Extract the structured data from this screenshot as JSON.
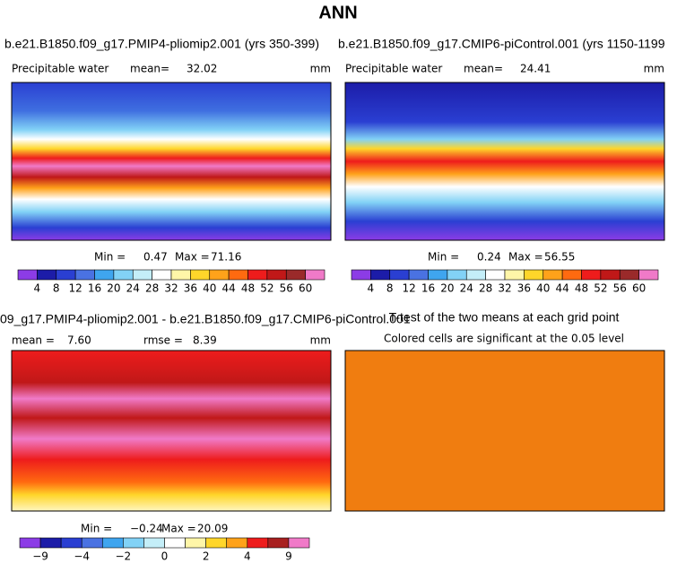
{
  "title": "ANN",
  "panels": [
    {
      "title": "b.e21.B1850.f09_g17.PMIP4-pliomip2.001 (yrs 350-399)",
      "variable": "Precipitable water",
      "stat_label": "mean=",
      "stat": "32.02",
      "units": "mm",
      "min_label": "Min =",
      "min": "0.47",
      "max_label": "Max =",
      "max": "71.16",
      "colorbar": {
        "colors": [
          "#8c3ce6",
          "#1c1ca8",
          "#2a3fd2",
          "#4a72e2",
          "#3fa5ef",
          "#82d2f6",
          "#c4eef8",
          "#ffffff",
          "#fff6a8",
          "#ffd62a",
          "#ffa21a",
          "#ff6a10",
          "#ee1c1c",
          "#c01818",
          "#9a2a2a",
          "#f07ac8"
        ],
        "labels": [
          "4",
          "8",
          "12",
          "16",
          "20",
          "24",
          "28",
          "32",
          "36",
          "40",
          "44",
          "48",
          "52",
          "56",
          "60"
        ]
      }
    },
    {
      "title": "b.e21.B1850.f09_g17.CMIP6-piControl.001 (yrs 1150-1199",
      "variable": "Precipitable water",
      "stat_label": "mean=",
      "stat": "24.41",
      "units": "mm",
      "min_label": "Min =",
      "min": "0.24",
      "max_label": "Max =",
      "max": "56.55",
      "colorbar": {
        "colors": [
          "#8c3ce6",
          "#1c1ca8",
          "#2a3fd2",
          "#4a72e2",
          "#3fa5ef",
          "#82d2f6",
          "#c4eef8",
          "#ffffff",
          "#fff6a8",
          "#ffd62a",
          "#ffa21a",
          "#ff6a10",
          "#ee1c1c",
          "#c01818",
          "#9a2a2a",
          "#f07ac8"
        ],
        "labels": [
          "4",
          "8",
          "12",
          "16",
          "20",
          "24",
          "28",
          "32",
          "36",
          "40",
          "44",
          "48",
          "52",
          "56",
          "60"
        ]
      }
    },
    {
      "title": "09_g17.PMIP4-pliomip2.001 - b.e21.B1850.f09_g17.CMIP6-piControl.001",
      "stat_label": "mean =",
      "stat": "7.60",
      "stat2_label": "rmse =",
      "stat2": "8.39",
      "units": "mm",
      "min_label": "Min =",
      "min": "−0.24",
      "max_label": "Max =",
      "max": "20.09",
      "colorbar": {
        "colors": [
          "#8c3ce6",
          "#1c1ca8",
          "#2a3fd2",
          "#4a72e2",
          "#3fa5ef",
          "#82d2f6",
          "#c4eef8",
          "#ffffff",
          "#fff6a8",
          "#ffd62a",
          "#ffa21a",
          "#ee1c1c",
          "#a82020",
          "#f07ac8"
        ],
        "labels": [
          "−9",
          null,
          "−4",
          null,
          "−2",
          null,
          "0",
          null,
          "2",
          null,
          "4",
          null,
          "9"
        ]
      }
    },
    {
      "title": "T-test of the two means at each grid point",
      "subtitle": "Colored cells are significant at the 0.05 level"
    }
  ]
}
